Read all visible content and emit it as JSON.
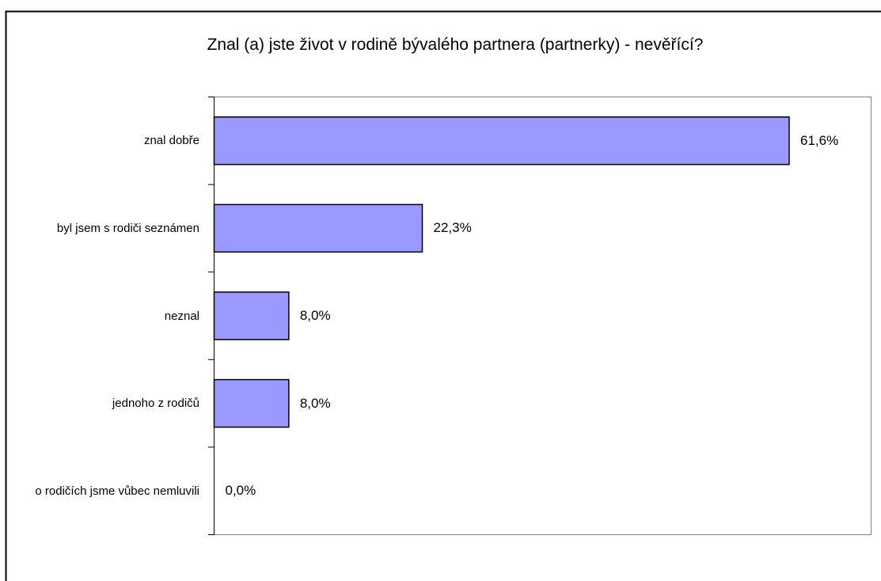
{
  "chart_data": {
    "type": "bar",
    "orientation": "horizontal",
    "title": "Znal (a) jste život v rodině bývalého partnera (partnerky) - nevěřící?",
    "categories": [
      "znal dobře",
      "byl jsem s rodiči seznámen",
      "neznal",
      "jednoho z rodičů",
      "o rodičích jsme vůbec nemluvili"
    ],
    "values": [
      61.6,
      22.3,
      8.0,
      8.0,
      0.0
    ],
    "value_labels": [
      "61,6%",
      "22,3%",
      "8,0%",
      "8,0%",
      "0,0%"
    ],
    "color": "#9999ff"
  }
}
